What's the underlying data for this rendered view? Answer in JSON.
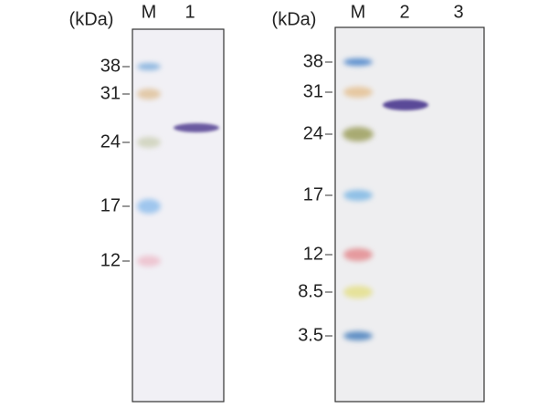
{
  "panels": [
    {
      "unit_label": "(kDa)",
      "lanes": [
        "M",
        "1"
      ],
      "markers": [
        "38",
        "31",
        "24",
        "17",
        "12"
      ]
    },
    {
      "unit_label": "(kDa)",
      "lanes": [
        "M",
        "2",
        "3"
      ],
      "markers": [
        "38",
        "31",
        "24",
        "17",
        "12",
        "8.5",
        "3.5"
      ]
    }
  ]
}
